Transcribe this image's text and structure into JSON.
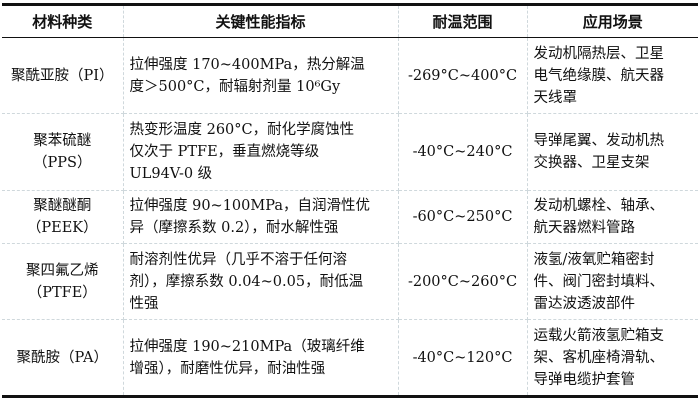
{
  "headers": [
    "材料种类",
    "关键性能指标",
    "耐温范围",
    "应用场景"
  ],
  "rows": [
    {
      "material": [
        "聚酰亚胺（PI）"
      ],
      "properties": [
        "拉伸强度 170~400MPa，热分解温",
        "度＞500°C，耐辐射剂量 10⁶Gy"
      ],
      "temperature": [
        "-269°C~400°C"
      ],
      "applications": [
        "发动机隔热层、卫星",
        "电气绝缘膜、航天器",
        "天线罩"
      ]
    },
    {
      "material": [
        "聚苯硫醚",
        "（PPS）"
      ],
      "properties": [
        "热变形温度 260°C，耐化学腐蚀性",
        "仅次于 PTFE，垂直燃烧等级",
        "UL94V-0 级"
      ],
      "temperature": [
        "-40°C~240°C"
      ],
      "applications": [
        "导弹尾翼、发动机热",
        "交换器、卫星支架"
      ]
    },
    {
      "material": [
        "聚醚醚酮",
        "（PEEK）"
      ],
      "properties": [
        "拉伸强度 90~100MPa，自润滑性优",
        "异（摩擦系数 0.2），耐水解性强"
      ],
      "temperature": [
        "-60°C~250°C"
      ],
      "applications": [
        "发动机螺栓、轴承、",
        "航天器燃料管路"
      ]
    },
    {
      "material": [
        "聚四氟乙烯",
        "（PTFE）"
      ],
      "properties": [
        "耐溶剂性优异（几乎不溶于任何溶",
        "剂），摩擦系数 0.04~0.05，耐低温",
        "性强"
      ],
      "temperature": [
        "-200°C~260°C"
      ],
      "applications": [
        "液氢/液氧贮箱密封",
        "件、阀门密封填料、",
        "雷达波透波部件"
      ]
    },
    {
      "material": [
        "聚酰胺（PA）"
      ],
      "properties": [
        "拉伸强度 190~210MPa（玻璃纤维",
        "增强），耐磨性优异，耐油性强"
      ],
      "temperature": [
        "-40°C~120°C"
      ],
      "applications": [
        "运载火箭液氢贮箱支",
        "架、客机座椅滑轨、",
        "导弹电缆护套管"
      ]
    }
  ]
}
